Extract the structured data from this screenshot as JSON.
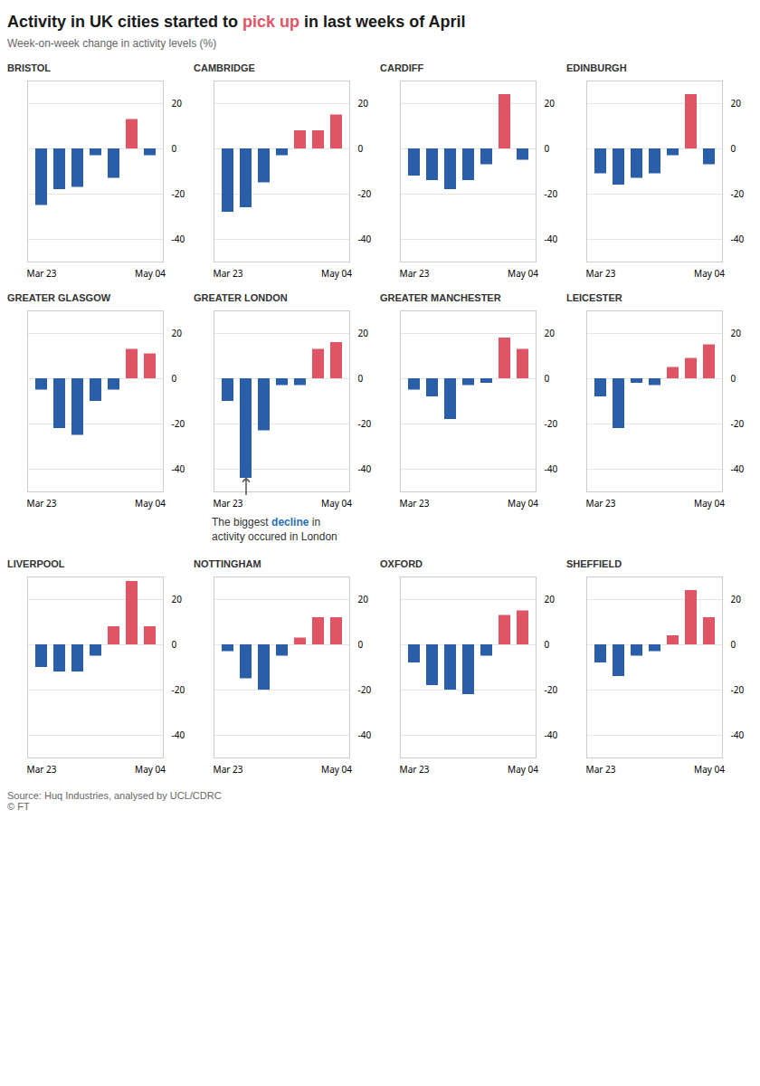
{
  "title_parts": [
    "Activity in UK cities started to ",
    "pick up",
    " in last weeks of April"
  ],
  "title_colors": [
    "#1a1a1a",
    "#e05565",
    "#1a1a1a"
  ],
  "subtitle": "Week-on-week change in activity levels (%)",
  "source": [
    "Source: Huq Industries, analysed by UCL/CDRC",
    "© FT"
  ],
  "chart_data": [
    {
      "type": "bar",
      "title": "BRISTOL",
      "categories": [
        "Mar 23",
        null,
        null,
        null,
        null,
        null,
        "May 04"
      ],
      "values": [
        -25,
        -18,
        -17,
        -3,
        -13,
        13,
        -3
      ],
      "colors": [
        "#2a5ea8",
        "#2a5ea8",
        "#2a5ea8",
        "#2a5ea8",
        "#2a5ea8",
        "#e05565",
        "#2a5ea8"
      ],
      "ylim": [
        -50,
        30
      ],
      "yticks": [
        20,
        0,
        -20,
        -40
      ],
      "grid": true
    },
    {
      "type": "bar",
      "title": "CAMBRIDGE",
      "categories": [
        "Mar 23",
        null,
        null,
        null,
        null,
        null,
        "May 04"
      ],
      "values": [
        -28,
        -26,
        -15,
        -3,
        8,
        8,
        15
      ],
      "colors": [
        "#2a5ea8",
        "#2a5ea8",
        "#2a5ea8",
        "#2a5ea8",
        "#e05565",
        "#e05565",
        "#e05565"
      ],
      "ylim": [
        -50,
        30
      ],
      "yticks": [
        20,
        0,
        -20,
        -40
      ],
      "grid": true
    },
    {
      "type": "bar",
      "title": "CARDIFF",
      "categories": [
        "Mar 23",
        null,
        null,
        null,
        null,
        null,
        "May 04"
      ],
      "values": [
        -12,
        -14,
        -18,
        -14,
        -7,
        24,
        -5
      ],
      "colors": [
        "#2a5ea8",
        "#2a5ea8",
        "#2a5ea8",
        "#2a5ea8",
        "#2a5ea8",
        "#e05565",
        "#2a5ea8"
      ],
      "ylim": [
        -50,
        30
      ],
      "yticks": [
        20,
        0,
        -20,
        -40
      ],
      "grid": true
    },
    {
      "type": "bar",
      "title": "EDINBURGH",
      "categories": [
        "Mar 23",
        null,
        null,
        null,
        null,
        null,
        "May 04"
      ],
      "values": [
        -11,
        -16,
        -13,
        -11,
        -3,
        24,
        -7
      ],
      "colors": [
        "#2a5ea8",
        "#2a5ea8",
        "#2a5ea8",
        "#2a5ea8",
        "#2a5ea8",
        "#e05565",
        "#2a5ea8"
      ],
      "ylim": [
        -50,
        30
      ],
      "yticks": [
        20,
        0,
        -20,
        -40
      ],
      "grid": true
    },
    {
      "type": "bar",
      "title": "GREATER GLASGOW",
      "categories": [
        "Mar 23",
        null,
        null,
        null,
        null,
        null,
        "May 04"
      ],
      "values": [
        -5,
        -22,
        -25,
        -10,
        -5,
        13,
        11
      ],
      "colors": [
        "#2a5ea8",
        "#2a5ea8",
        "#2a5ea8",
        "#2a5ea8",
        "#2a5ea8",
        "#e05565",
        "#e05565"
      ],
      "ylim": [
        -50,
        30
      ],
      "yticks": [
        20,
        0,
        -20,
        -40
      ],
      "grid": true
    },
    {
      "type": "bar",
      "title": "GREATER LONDON",
      "categories": [
        "Mar 23",
        null,
        null,
        null,
        null,
        null,
        "May 04"
      ],
      "values": [
        -10,
        -44,
        -23,
        -3,
        -3,
        13,
        16
      ],
      "colors": [
        "#2a5ea8",
        "#2a5ea8",
        "#2a5ea8",
        "#2a5ea8",
        "#2a5ea8",
        "#e05565",
        "#e05565"
      ],
      "ylim": [
        -50,
        30
      ],
      "yticks": [
        20,
        0,
        -20,
        -40
      ],
      "grid": true,
      "annotation": {
        "text_parts": [
          "The biggest ",
          "decline",
          " in\nactivity occured in London"
        ],
        "colors": [
          "#333333",
          "#2a6eb5",
          "#333333"
        ],
        "x": 1,
        "y": -44
      }
    },
    {
      "type": "bar",
      "title": "GREATER MANCHESTER",
      "categories": [
        "Mar 23",
        null,
        null,
        null,
        null,
        null,
        "May 04"
      ],
      "values": [
        -5,
        -8,
        -18,
        -3,
        -2,
        18,
        13
      ],
      "colors": [
        "#2a5ea8",
        "#2a5ea8",
        "#2a5ea8",
        "#2a5ea8",
        "#2a5ea8",
        "#e05565",
        "#e05565"
      ],
      "ylim": [
        -50,
        30
      ],
      "yticks": [
        20,
        0,
        -20,
        -40
      ],
      "grid": true
    },
    {
      "type": "bar",
      "title": "LEICESTER",
      "categories": [
        "Mar 23",
        null,
        null,
        null,
        null,
        null,
        "May 04"
      ],
      "values": [
        -8,
        -22,
        -2,
        -3,
        5,
        9,
        15
      ],
      "colors": [
        "#2a5ea8",
        "#2a5ea8",
        "#2a5ea8",
        "#2a5ea8",
        "#e05565",
        "#e05565",
        "#e05565"
      ],
      "ylim": [
        -50,
        30
      ],
      "yticks": [
        20,
        0,
        -20,
        -40
      ],
      "grid": true
    },
    {
      "type": "bar",
      "title": "LIVERPOOL",
      "categories": [
        "Mar 23",
        null,
        null,
        null,
        null,
        null,
        "May 04"
      ],
      "values": [
        -10,
        -12,
        -12,
        -5,
        8,
        28,
        8
      ],
      "colors": [
        "#2a5ea8",
        "#2a5ea8",
        "#2a5ea8",
        "#2a5ea8",
        "#e05565",
        "#e05565",
        "#e05565"
      ],
      "ylim": [
        -50,
        30
      ],
      "yticks": [
        20,
        0,
        -20,
        -40
      ],
      "grid": true
    },
    {
      "type": "bar",
      "title": "NOTTINGHAM",
      "categories": [
        "Mar 23",
        null,
        null,
        null,
        null,
        null,
        "May 04"
      ],
      "values": [
        -3,
        -15,
        -20,
        -5,
        3,
        12,
        12
      ],
      "colors": [
        "#2a5ea8",
        "#2a5ea8",
        "#2a5ea8",
        "#2a5ea8",
        "#e05565",
        "#e05565",
        "#e05565"
      ],
      "ylim": [
        -50,
        30
      ],
      "yticks": [
        20,
        0,
        -20,
        -40
      ],
      "grid": true
    },
    {
      "type": "bar",
      "title": "OXFORD",
      "categories": [
        "Mar 23",
        null,
        null,
        null,
        null,
        null,
        "May 04"
      ],
      "values": [
        -8,
        -18,
        -20,
        -22,
        -5,
        13,
        15
      ],
      "colors": [
        "#2a5ea8",
        "#2a5ea8",
        "#2a5ea8",
        "#2a5ea8",
        "#2a5ea8",
        "#e05565",
        "#e05565"
      ],
      "ylim": [
        -50,
        30
      ],
      "yticks": [
        20,
        0,
        -20,
        -40
      ],
      "grid": true
    },
    {
      "type": "bar",
      "title": "SHEFFIELD",
      "categories": [
        "Mar 23",
        null,
        null,
        null,
        null,
        null,
        "May 04"
      ],
      "values": [
        -8,
        -14,
        -5,
        -3,
        4,
        24,
        12
      ],
      "colors": [
        "#2a5ea8",
        "#2a5ea8",
        "#2a5ea8",
        "#2a5ea8",
        "#e05565",
        "#e05565",
        "#e05565"
      ],
      "ylim": [
        -50,
        30
      ],
      "yticks": [
        20,
        0,
        -20,
        -40
      ],
      "grid": true
    }
  ]
}
